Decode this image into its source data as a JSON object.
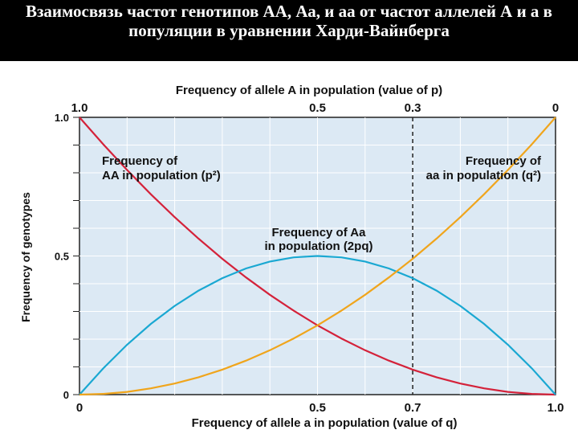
{
  "title": "Взаимосвязь частот генотипов АА, Аа, и аа от частот аллелей А и а в популяции в уравнении Харди-Вайнберга",
  "colors": {
    "background": "#dce9f4",
    "AA": "#d4223a",
    "Aa": "#1aa8d2",
    "aa": "#f0a51c",
    "title_band": "#000000"
  },
  "chart_data": {
    "type": "line",
    "top_axis_label": "Frequency of allele A in population (value of p)",
    "top_ticks": [
      "1.0",
      "0.5",
      "0.3",
      "0"
    ],
    "xlabel": "Frequency of allele a in population (value of q)",
    "x_ticks": [
      "0",
      "0.5",
      "0.7",
      "1.0"
    ],
    "ylabel": "Frequency of genotypes",
    "y_ticks": [
      "0",
      "0.5",
      "1.0"
    ],
    "xlim": [
      0,
      1
    ],
    "ylim": [
      0,
      1
    ],
    "reference_line_q": 0.7,
    "series": [
      {
        "id": "AA",
        "name": "Frequency of AA in population (p²)",
        "label_lines": [
          "Frequency of",
          "AA in population (p²)"
        ],
        "x": [
          0,
          0.05,
          0.1,
          0.15,
          0.2,
          0.25,
          0.3,
          0.35,
          0.4,
          0.45,
          0.5,
          0.55,
          0.6,
          0.65,
          0.7,
          0.75,
          0.8,
          0.85,
          0.9,
          0.95,
          1.0
        ],
        "y": [
          1.0,
          0.9025,
          0.81,
          0.7225,
          0.64,
          0.5625,
          0.49,
          0.4225,
          0.36,
          0.3025,
          0.25,
          0.2025,
          0.16,
          0.1225,
          0.09,
          0.0625,
          0.04,
          0.0225,
          0.01,
          0.0025,
          0.0
        ]
      },
      {
        "id": "Aa",
        "name": "Frequency of Aa in population (2pq)",
        "label_lines": [
          "Frequency of Aa",
          "in population (2pq)"
        ],
        "x": [
          0,
          0.05,
          0.1,
          0.15,
          0.2,
          0.25,
          0.3,
          0.35,
          0.4,
          0.45,
          0.5,
          0.55,
          0.6,
          0.65,
          0.7,
          0.75,
          0.8,
          0.85,
          0.9,
          0.95,
          1.0
        ],
        "y": [
          0.0,
          0.095,
          0.18,
          0.255,
          0.32,
          0.375,
          0.42,
          0.455,
          0.48,
          0.495,
          0.5,
          0.495,
          0.48,
          0.455,
          0.42,
          0.375,
          0.32,
          0.255,
          0.18,
          0.095,
          0.0
        ]
      },
      {
        "id": "aa",
        "name": "Frequency of aa in population (q²)",
        "label_lines": [
          "Frequency of",
          "aa in population (q²)"
        ],
        "x": [
          0,
          0.05,
          0.1,
          0.15,
          0.2,
          0.25,
          0.3,
          0.35,
          0.4,
          0.45,
          0.5,
          0.55,
          0.6,
          0.65,
          0.7,
          0.75,
          0.8,
          0.85,
          0.9,
          0.95,
          1.0
        ],
        "y": [
          0.0,
          0.0025,
          0.01,
          0.0225,
          0.04,
          0.0625,
          0.09,
          0.1225,
          0.16,
          0.2025,
          0.25,
          0.3025,
          0.36,
          0.4225,
          0.49,
          0.5625,
          0.64,
          0.7225,
          0.81,
          0.9025,
          1.0
        ]
      }
    ]
  }
}
